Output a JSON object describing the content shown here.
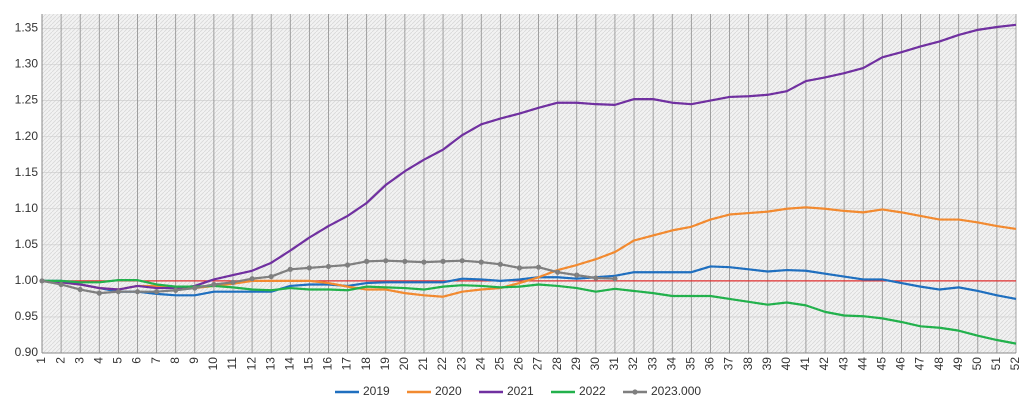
{
  "chart_data": {
    "type": "line",
    "categories": [
      "1",
      "2",
      "3",
      "4",
      "5",
      "6",
      "7",
      "8",
      "9",
      "10",
      "11",
      "12",
      "13",
      "14",
      "15",
      "16",
      "17",
      "18",
      "19",
      "20",
      "21",
      "22",
      "23",
      "24",
      "25",
      "26",
      "27",
      "28",
      "29",
      "30",
      "31",
      "32",
      "33",
      "34",
      "35",
      "36",
      "37",
      "38",
      "39",
      "40",
      "41",
      "42",
      "43",
      "44",
      "45",
      "46",
      "47",
      "48",
      "49",
      "50",
      "51",
      "52"
    ],
    "ylim": [
      0.9,
      1.37
    ],
    "yticks": [
      {
        "value": 0.9,
        "label": "0.90"
      },
      {
        "value": 0.95,
        "label": "0.95"
      },
      {
        "value": 1.0,
        "label": "1.00"
      },
      {
        "value": 1.05,
        "label": "1.05"
      },
      {
        "value": 1.1,
        "label": "1.10"
      },
      {
        "value": 1.15,
        "label": "1.15"
      },
      {
        "value": 1.2,
        "label": "1.20"
      },
      {
        "value": 1.25,
        "label": "1.25"
      },
      {
        "value": 1.3,
        "label": "1.30"
      },
      {
        "value": 1.35,
        "label": "1.35"
      }
    ],
    "reference_line": {
      "value": 1.0,
      "color": "#e03030"
    },
    "grid": true,
    "legend": "bottom",
    "series": [
      {
        "name": "2019",
        "color": "#1f6fbf",
        "values": [
          1.0,
          1.0,
          0.995,
          0.99,
          0.985,
          0.985,
          0.982,
          0.98,
          0.98,
          0.985,
          0.985,
          0.985,
          0.985,
          0.993,
          0.995,
          0.995,
          0.993,
          0.997,
          0.998,
          0.998,
          0.998,
          0.998,
          1.003,
          1.002,
          1.0,
          1.002,
          1.005,
          1.005,
          1.003,
          1.005,
          1.007,
          1.012,
          1.012,
          1.012,
          1.012,
          1.02,
          1.019,
          1.016,
          1.013,
          1.015,
          1.014,
          1.01,
          1.006,
          1.002,
          1.002,
          0.997,
          0.992,
          0.988,
          0.991,
          0.986,
          0.98,
          0.975
        ]
      },
      {
        "name": "2020",
        "color": "#f28a30",
        "values": [
          1.0,
          0.998,
          0.995,
          0.99,
          0.988,
          0.993,
          0.993,
          0.99,
          0.99,
          0.993,
          0.996,
          1.0,
          1.0,
          1.0,
          1.0,
          0.997,
          0.992,
          0.988,
          0.988,
          0.983,
          0.98,
          0.978,
          0.985,
          0.988,
          0.99,
          0.997,
          1.005,
          1.015,
          1.022,
          1.03,
          1.04,
          1.056,
          1.063,
          1.07,
          1.075,
          1.085,
          1.092,
          1.094,
          1.096,
          1.1,
          1.102,
          1.1,
          1.097,
          1.095,
          1.099,
          1.095,
          1.09,
          1.085,
          1.085,
          1.081,
          1.076,
          1.072
        ]
      },
      {
        "name": "2021",
        "color": "#7030a0",
        "values": [
          1.0,
          0.998,
          0.995,
          0.99,
          0.988,
          0.993,
          0.99,
          0.99,
          0.993,
          1.002,
          1.008,
          1.014,
          1.025,
          1.042,
          1.06,
          1.076,
          1.09,
          1.108,
          1.133,
          1.152,
          1.168,
          1.182,
          1.202,
          1.217,
          1.225,
          1.232,
          1.24,
          1.247,
          1.247,
          1.245,
          1.244,
          1.252,
          1.252,
          1.247,
          1.245,
          1.25,
          1.255,
          1.256,
          1.258,
          1.263,
          1.277,
          1.282,
          1.288,
          1.295,
          1.31,
          1.317,
          1.325,
          1.332,
          1.341,
          1.348,
          1.352,
          1.355
        ]
      },
      {
        "name": "2022",
        "color": "#22b14c",
        "values": [
          1.0,
          1.0,
          0.998,
          0.998,
          1.001,
          1.001,
          0.995,
          0.992,
          0.992,
          0.993,
          0.991,
          0.988,
          0.987,
          0.99,
          0.988,
          0.988,
          0.987,
          0.992,
          0.991,
          0.99,
          0.988,
          0.992,
          0.994,
          0.993,
          0.991,
          0.992,
          0.995,
          0.993,
          0.99,
          0.985,
          0.989,
          0.986,
          0.983,
          0.979,
          0.979,
          0.979,
          0.975,
          0.971,
          0.967,
          0.97,
          0.966,
          0.957,
          0.952,
          0.951,
          0.948,
          0.943,
          0.937,
          0.935,
          0.931,
          0.924,
          0.918,
          0.913
        ]
      },
      {
        "name": "2023.000",
        "color": "#7f7f7f",
        "markers": true,
        "values": [
          1.0,
          0.995,
          0.988,
          0.983,
          0.985,
          0.985,
          0.985,
          0.987,
          0.99,
          0.995,
          0.998,
          1.003,
          1.006,
          1.016,
          1.018,
          1.02,
          1.022,
          1.027,
          1.028,
          1.027,
          1.026,
          1.027,
          1.028,
          1.026,
          1.023,
          1.018,
          1.019,
          1.012,
          1.008,
          1.004,
          1.003,
          null,
          null,
          null,
          null,
          null,
          null,
          null,
          null,
          null,
          null,
          null,
          null,
          null,
          null,
          null,
          null,
          null,
          null,
          null,
          null,
          null
        ]
      }
    ]
  }
}
